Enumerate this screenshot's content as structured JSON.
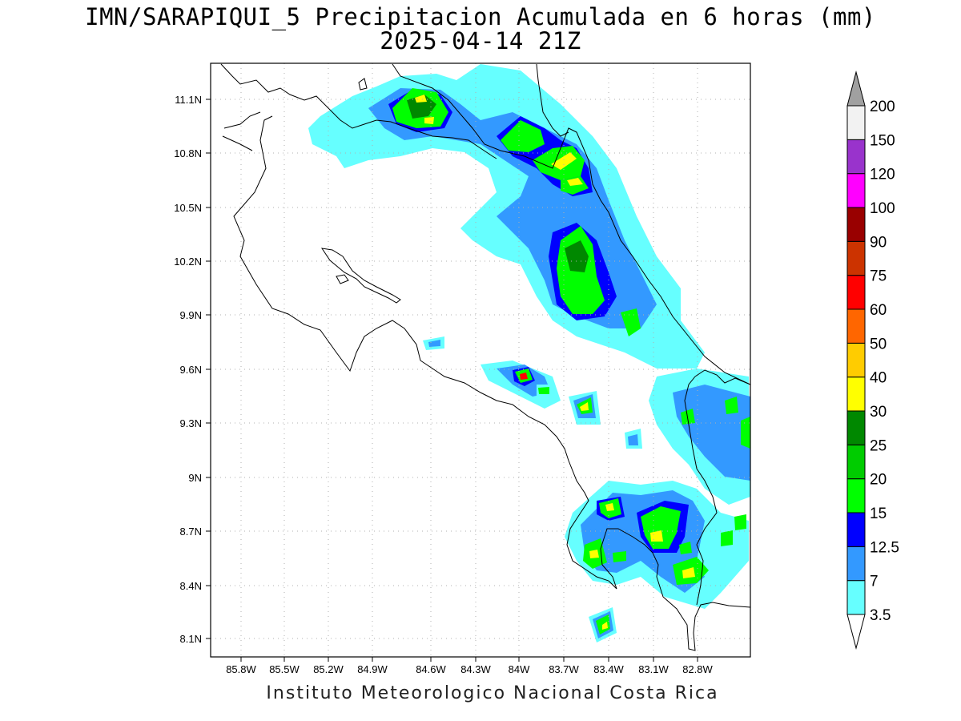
{
  "title_line1": "IMN/SARAPIQUI_5 Precipitacion Acumulada en 6 horas (mm)",
  "title_line2": "2025-04-14 21Z",
  "footer": "Instituto Meteorologico Nacional Costa Rica",
  "map": {
    "lon_range": [
      -86.0,
      -83.0
    ],
    "lat_range": [
      8.0,
      11.2
    ],
    "lon_ticks": [
      "85.8W",
      "85.5W",
      "85.2W",
      "84.9W",
      "84.6W",
      "84.3W",
      "84W",
      "83.7W",
      "83.4W",
      "83.1W",
      "82.8W"
    ],
    "lat_ticks": [
      "11.1N",
      "10.8N",
      "10.5N",
      "10.2N",
      "9.9N",
      "9.6N",
      "9.3N",
      "9N",
      "8.7N",
      "8.4N",
      "8.1N"
    ],
    "grid": true
  },
  "colorbar": {
    "levels": [
      "3.5",
      "7",
      "12.5",
      "15",
      "20",
      "25",
      "30",
      "40",
      "50",
      "60",
      "75",
      "90",
      "100",
      "120",
      "150",
      "200"
    ],
    "colors": [
      "#ffffff",
      "#66ffff",
      "#3399ff",
      "#0000ff",
      "#00ff00",
      "#00cc00",
      "#008800",
      "#ffff00",
      "#ffcc00",
      "#ff6600",
      "#ff0000",
      "#cc3300",
      "#990000",
      "#ff00ff",
      "#9933cc",
      "#f2f2f2",
      "#a0a0a0"
    ]
  },
  "precip_colors": {
    "c3": "#66ffff",
    "c7": "#3399ff",
    "c12": "#0000ff",
    "c15": "#00ff00",
    "c20": "#00cc00",
    "c25": "#008800",
    "c30": "#ffff00",
    "c60": "#ff0000"
  }
}
